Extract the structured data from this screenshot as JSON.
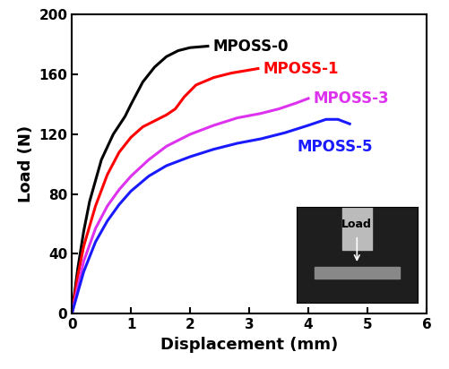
{
  "chart_data": {
    "type": "line",
    "x_label": "Displacement (mm)",
    "y_label": "Load (N)",
    "xlim": [
      0,
      6
    ],
    "xticks": [
      0,
      1,
      2,
      3,
      4,
      5,
      6
    ],
    "ylim": [
      0,
      200
    ],
    "yticks": [
      0,
      40,
      80,
      120,
      160,
      200
    ],
    "annotations": [
      "Load"
    ],
    "series": [
      {
        "name": "MPOSS-0",
        "color": "#000000",
        "x": [
          0,
          0.1,
          0.2,
          0.3,
          0.5,
          0.7,
          0.9,
          1.0,
          1.2,
          1.4,
          1.6,
          1.8,
          2.0,
          2.3
        ],
        "values": [
          0,
          30,
          55,
          75,
          103,
          120,
          132,
          140,
          155,
          165,
          172,
          176,
          178,
          179
        ]
      },
      {
        "name": "MPOSS-1",
        "color": "#ff0000",
        "x": [
          0,
          0.1,
          0.2,
          0.4,
          0.6,
          0.8,
          1.0,
          1.2,
          1.4,
          1.6,
          1.75,
          1.9,
          2.1,
          2.4,
          2.7,
          3.0,
          3.15
        ],
        "values": [
          0,
          25,
          45,
          72,
          93,
          108,
          118,
          125,
          129,
          133,
          137,
          145,
          153,
          158,
          161,
          163,
          164
        ]
      },
      {
        "name": "MPOSS-3",
        "color": "#dd33ee",
        "x": [
          0,
          0.2,
          0.4,
          0.6,
          0.8,
          1.0,
          1.3,
          1.6,
          2.0,
          2.4,
          2.8,
          3.2,
          3.5,
          3.8,
          4.0
        ],
        "values": [
          0,
          35,
          57,
          72,
          83,
          92,
          103,
          112,
          120,
          126,
          131,
          134,
          137,
          141,
          144
        ]
      },
      {
        "name": "MPOSS-5",
        "color": "#1a1aff",
        "x": [
          0,
          0.2,
          0.4,
          0.6,
          0.8,
          1.0,
          1.3,
          1.6,
          2.0,
          2.4,
          2.8,
          3.2,
          3.6,
          4.0,
          4.3,
          4.5,
          4.7
        ],
        "values": [
          0,
          28,
          48,
          62,
          73,
          82,
          92,
          99,
          105,
          110,
          114,
          117,
          121,
          126,
          130,
          130,
          127
        ]
      }
    ]
  }
}
